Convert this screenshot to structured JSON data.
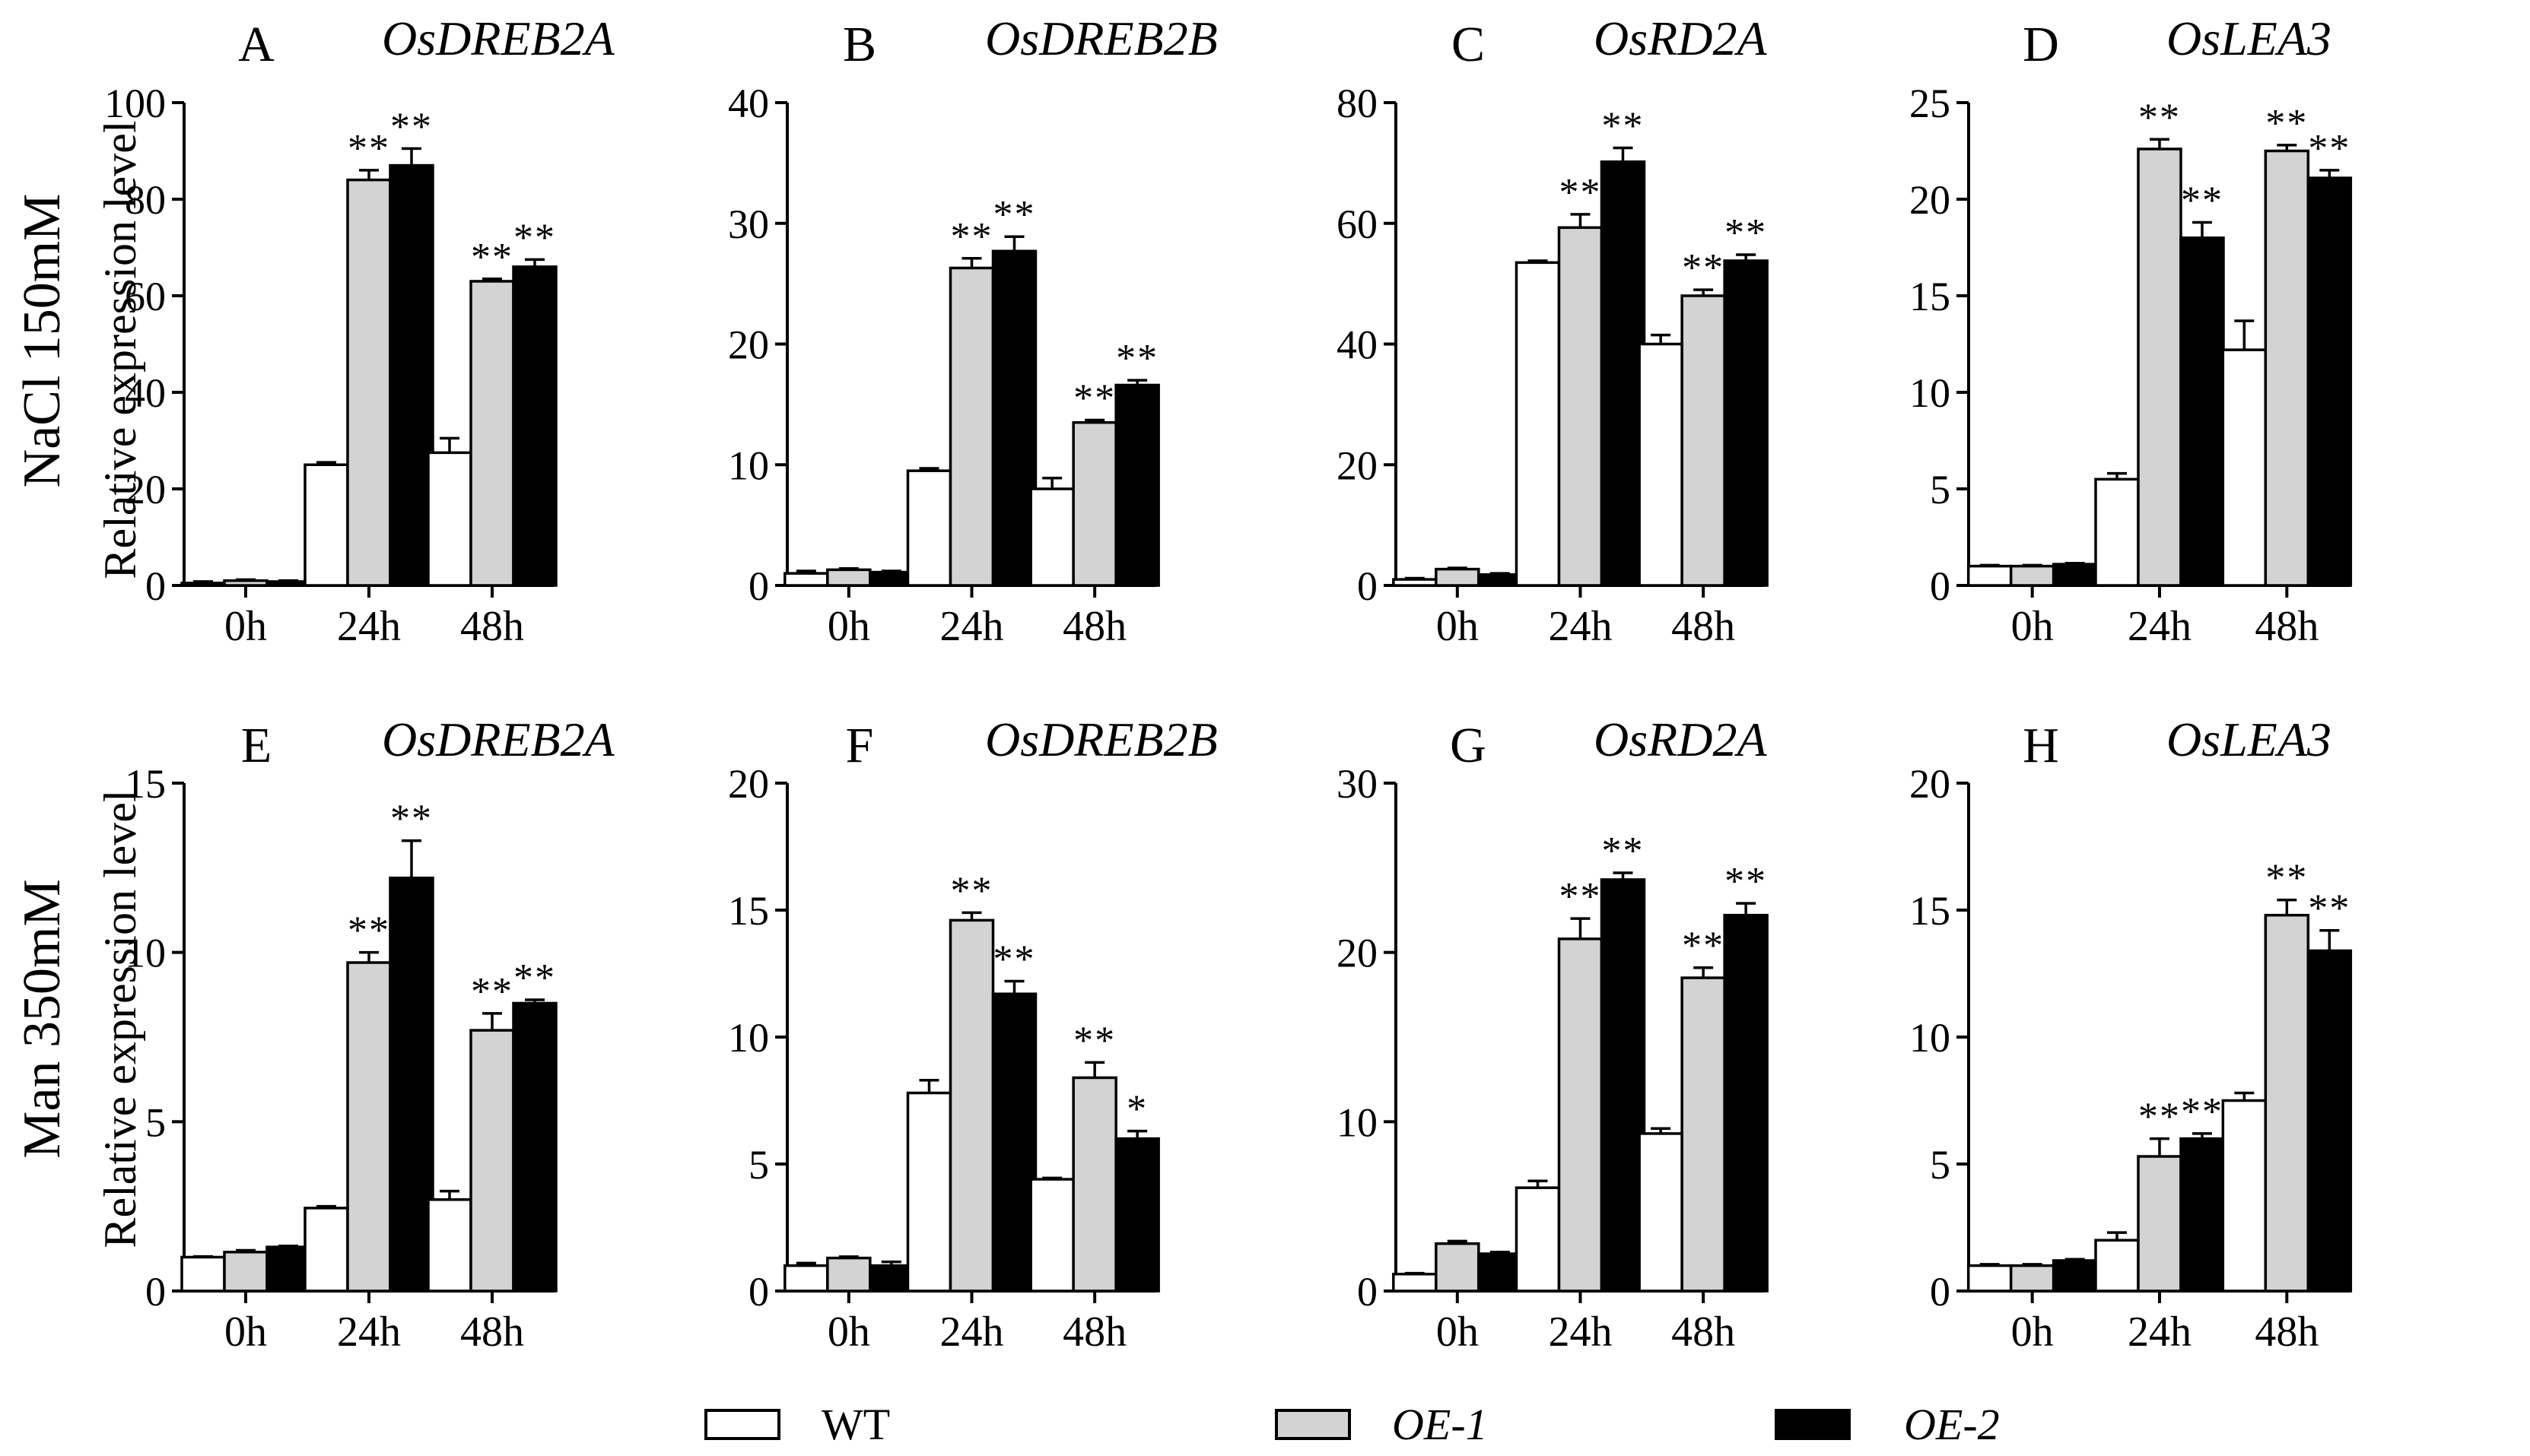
{
  "figure": {
    "row_labels": [
      {
        "condition": "NaCl 150mM",
        "measure": "Relative expression level"
      },
      {
        "condition": "Man 350mM",
        "measure": "Relative expression level"
      }
    ]
  },
  "legend": [
    {
      "label": "WT",
      "color": "#ffffff",
      "italic": false
    },
    {
      "label": "OE-1",
      "color": "#d3d3d3",
      "italic": true
    },
    {
      "label": "OE-2",
      "color": "#000000",
      "italic": true
    }
  ],
  "chart_data": [
    {
      "type": "bar",
      "panel": "A",
      "title": "OsDREB2A",
      "categories": [
        "0h",
        "24h",
        "48h"
      ],
      "ylim": [
        0,
        100
      ],
      "yticks": [
        0,
        20,
        40,
        60,
        80,
        100
      ],
      "series": [
        {
          "name": "WT",
          "values": [
            0.5,
            25,
            27.5
          ],
          "errors": [
            0.3,
            0.5,
            3
          ],
          "sig": [
            "",
            "",
            ""
          ]
        },
        {
          "name": "OE-1",
          "values": [
            1,
            84,
            63
          ],
          "errors": [
            0.2,
            2,
            0.5
          ],
          "sig": [
            "",
            "**",
            "**"
          ]
        },
        {
          "name": "OE-2",
          "values": [
            0.8,
            87,
            66
          ],
          "errors": [
            0.2,
            3.5,
            1.5
          ],
          "sig": [
            "",
            "**",
            "**"
          ]
        }
      ]
    },
    {
      "type": "bar",
      "panel": "B",
      "title": "OsDREB2B",
      "categories": [
        "0h",
        "24h",
        "48h"
      ],
      "ylim": [
        0,
        40
      ],
      "yticks": [
        0,
        10,
        20,
        30,
        40
      ],
      "series": [
        {
          "name": "WT",
          "values": [
            1,
            9.5,
            8
          ],
          "errors": [
            0.2,
            0.2,
            0.9
          ],
          "sig": [
            "",
            "",
            ""
          ]
        },
        {
          "name": "OE-1",
          "values": [
            1.3,
            26.3,
            13.5
          ],
          "errors": [
            0.1,
            0.8,
            0.2
          ],
          "sig": [
            "",
            "**",
            "**"
          ]
        },
        {
          "name": "OE-2",
          "values": [
            1.1,
            27.7,
            16.6
          ],
          "errors": [
            0.1,
            1.2,
            0.4
          ],
          "sig": [
            "",
            "**",
            "**"
          ]
        }
      ]
    },
    {
      "type": "bar",
      "panel": "C",
      "title": "OsRD2A",
      "categories": [
        "0h",
        "24h",
        "48h"
      ],
      "ylim": [
        0,
        80
      ],
      "yticks": [
        0,
        20,
        40,
        60,
        80
      ],
      "series": [
        {
          "name": "WT",
          "values": [
            1,
            53.5,
            40
          ],
          "errors": [
            0.2,
            0.3,
            1.5
          ],
          "sig": [
            "",
            "",
            ""
          ]
        },
        {
          "name": "OE-1",
          "values": [
            2.7,
            59.3,
            48
          ],
          "errors": [
            0.2,
            2.2,
            1
          ],
          "sig": [
            "",
            "**",
            "**"
          ]
        },
        {
          "name": "OE-2",
          "values": [
            1.8,
            70.2,
            53.8
          ],
          "errors": [
            0.2,
            2.3,
            1
          ],
          "sig": [
            "",
            "**",
            "**"
          ]
        }
      ]
    },
    {
      "type": "bar",
      "panel": "D",
      "title": "OsLEA3",
      "categories": [
        "0h",
        "24h",
        "48h"
      ],
      "ylim": [
        0,
        25
      ],
      "yticks": [
        0,
        5,
        10,
        15,
        20,
        25
      ],
      "series": [
        {
          "name": "WT",
          "values": [
            1,
            5.5,
            12.2
          ],
          "errors": [
            0.05,
            0.3,
            1.5
          ],
          "sig": [
            "",
            "",
            ""
          ]
        },
        {
          "name": "OE-1",
          "values": [
            1,
            22.6,
            22.5
          ],
          "errors": [
            0.05,
            0.5,
            0.3
          ],
          "sig": [
            "",
            "**",
            "**"
          ]
        },
        {
          "name": "OE-2",
          "values": [
            1.1,
            18,
            21.1
          ],
          "errors": [
            0.05,
            0.8,
            0.4
          ],
          "sig": [
            "",
            "**",
            "**"
          ]
        }
      ]
    },
    {
      "type": "bar",
      "panel": "E",
      "title": "OsDREB2A",
      "categories": [
        "0h",
        "24h",
        "48h"
      ],
      "ylim": [
        0,
        15
      ],
      "yticks": [
        0,
        5,
        10,
        15
      ],
      "series": [
        {
          "name": "WT",
          "values": [
            1,
            2.45,
            2.7
          ],
          "errors": [
            0.02,
            0.05,
            0.25
          ],
          "sig": [
            "",
            "",
            ""
          ]
        },
        {
          "name": "OE-1",
          "values": [
            1.15,
            9.7,
            7.7
          ],
          "errors": [
            0.05,
            0.3,
            0.5
          ],
          "sig": [
            "",
            "**",
            "**"
          ]
        },
        {
          "name": "OE-2",
          "values": [
            1.3,
            12.2,
            8.5
          ],
          "errors": [
            0.03,
            1.1,
            0.1
          ],
          "sig": [
            "",
            "**",
            "**"
          ]
        }
      ]
    },
    {
      "type": "bar",
      "panel": "F",
      "title": "OsDREB2B",
      "categories": [
        "0h",
        "24h",
        "48h"
      ],
      "ylim": [
        0,
        20
      ],
      "yticks": [
        0,
        5,
        10,
        15,
        20
      ],
      "series": [
        {
          "name": "WT",
          "values": [
            1,
            7.8,
            4.4
          ],
          "errors": [
            0.1,
            0.5,
            0.05
          ],
          "sig": [
            "",
            "",
            ""
          ]
        },
        {
          "name": "OE-1",
          "values": [
            1.3,
            14.6,
            8.4
          ],
          "errors": [
            0.05,
            0.3,
            0.6
          ],
          "sig": [
            "",
            "**",
            "**"
          ]
        },
        {
          "name": "OE-2",
          "values": [
            1,
            11.7,
            6
          ],
          "errors": [
            0.15,
            0.5,
            0.3
          ],
          "sig": [
            "",
            "**",
            "*"
          ]
        }
      ]
    },
    {
      "type": "bar",
      "panel": "G",
      "title": "OsRD2A",
      "categories": [
        "0h",
        "24h",
        "48h"
      ],
      "ylim": [
        0,
        30
      ],
      "yticks": [
        0,
        10,
        20,
        30
      ],
      "series": [
        {
          "name": "WT",
          "values": [
            1,
            6.1,
            9.3
          ],
          "errors": [
            0.05,
            0.4,
            0.3
          ],
          "sig": [
            "",
            "",
            ""
          ]
        },
        {
          "name": "OE-1",
          "values": [
            2.8,
            20.8,
            18.5
          ],
          "errors": [
            0.15,
            1.2,
            0.6
          ],
          "sig": [
            "",
            "**",
            "**"
          ]
        },
        {
          "name": "OE-2",
          "values": [
            2.2,
            24.3,
            22.2
          ],
          "errors": [
            0.1,
            0.4,
            0.7
          ],
          "sig": [
            "",
            "**",
            "**"
          ]
        }
      ]
    },
    {
      "type": "bar",
      "panel": "H",
      "title": "OsLEA3",
      "categories": [
        "0h",
        "24h",
        "48h"
      ],
      "ylim": [
        0,
        20
      ],
      "yticks": [
        0,
        5,
        10,
        15,
        20
      ],
      "series": [
        {
          "name": "WT",
          "values": [
            1,
            2,
            7.5
          ],
          "errors": [
            0.05,
            0.3,
            0.3
          ],
          "sig": [
            "",
            "",
            ""
          ]
        },
        {
          "name": "OE-1",
          "values": [
            1,
            5.3,
            14.8
          ],
          "errors": [
            0.05,
            0.7,
            0.6
          ],
          "sig": [
            "",
            "**",
            "**"
          ]
        },
        {
          "name": "OE-2",
          "values": [
            1.2,
            6,
            13.4
          ],
          "errors": [
            0.05,
            0.2,
            0.8
          ],
          "sig": [
            "",
            "**",
            "**"
          ]
        }
      ]
    }
  ]
}
